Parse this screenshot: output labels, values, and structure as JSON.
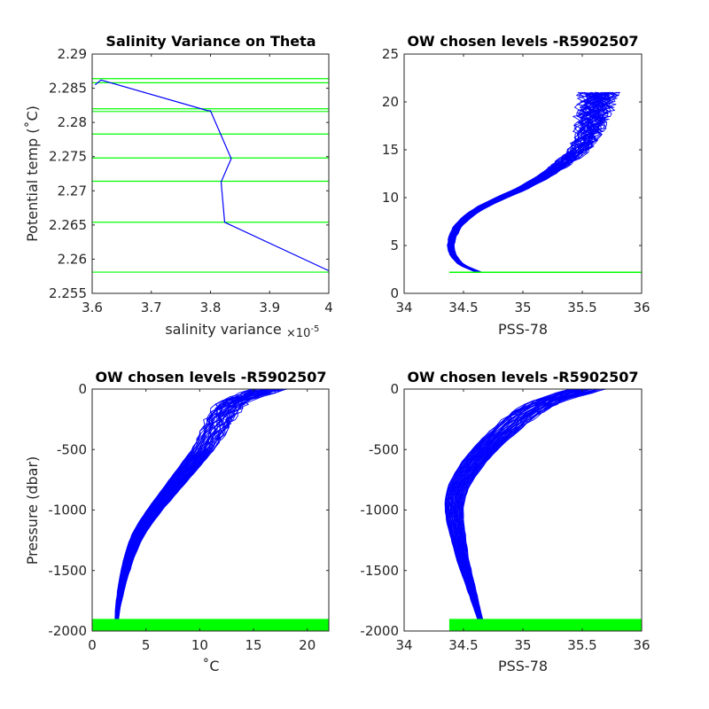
{
  "chart_data": [
    {
      "type": "line",
      "title": "Salinity Variance on Theta",
      "xlabel": "salinity variance",
      "x_multiplier": "×10",
      "x_multiplier_exp": "-5",
      "ylabel": "Potential temp (˚C)",
      "xlim": [
        3.6,
        4.0
      ],
      "ylim": [
        2.255,
        2.29
      ],
      "xticks": [
        "3.6",
        "3.7",
        "3.8",
        "3.9",
        "4"
      ],
      "yticks": [
        "2.255",
        "2.26",
        "2.265",
        "2.27",
        "2.275",
        "2.28",
        "2.285",
        "2.29"
      ],
      "series": [
        {
          "color": "#0000ff",
          "x": [
            4.0,
            3.824,
            3.818,
            3.835,
            3.8,
            3.796,
            3.615,
            3.605
          ],
          "y": [
            2.2583,
            2.2654,
            2.2713,
            2.2747,
            2.2817,
            2.2817,
            2.2862,
            2.2855
          ]
        }
      ],
      "hlines": {
        "color": "#00ff00",
        "y": [
          2.2581,
          2.2654,
          2.2714,
          2.2748,
          2.2783,
          2.2816,
          2.282,
          2.2858,
          2.2864
        ]
      }
    },
    {
      "type": "line",
      "title": "OW chosen levels -R5902507",
      "xlabel": "PSS-78",
      "ylabel": "",
      "xlim": [
        34,
        36
      ],
      "ylim": [
        0,
        25
      ],
      "xticks": [
        "34",
        "34.5",
        "35",
        "35.5",
        "36"
      ],
      "yticks": [
        "0",
        "5",
        "10",
        "15",
        "20",
        "25"
      ],
      "series": [
        {
          "name": "",
          "color": "#0000ff",
          "profile_count": 40,
          "envelope_center": {
            "y": [
              2.2,
              3.0,
              4.0,
              5.0,
              6.0,
              7.0,
              8.0,
              9.0,
              10.0,
              11.0,
              12.0,
              13.0,
              14.0,
              15.0,
              16.0,
              17.0,
              18.0,
              19.0,
              20.0,
              21.0
            ],
            "x": [
              34.63,
              34.48,
              34.41,
              34.39,
              34.41,
              34.45,
              34.53,
              34.65,
              34.82,
              35.0,
              35.15,
              35.27,
              35.38,
              35.47,
              35.53,
              35.56,
              35.58,
              35.6,
              35.62,
              35.65
            ]
          }
        }
      ],
      "hlines": {
        "color": "#00ff00",
        "y": [
          2.2
        ],
        "x_range": [
          34.38,
          36.0
        ]
      }
    },
    {
      "type": "line",
      "title": "OW chosen levels -R5902507",
      "xlabel": "˚C",
      "ylabel": "Pressure (dbar)",
      "xlim": [
        0,
        22
      ],
      "ylim": [
        -2000,
        0
      ],
      "xticks": [
        "0",
        "5",
        "10",
        "15",
        "20"
      ],
      "yticks": [
        "-2000",
        "-1500",
        "-1000",
        "-500",
        "0"
      ],
      "series": [
        {
          "color": "#0000ff",
          "profile_count": 40,
          "envelope_center": {
            "y": [
              -1900,
              -1800,
              -1700,
              -1600,
              -1500,
              -1400,
              -1300,
              -1200,
              -1100,
              -1000,
              -900,
              -800,
              -700,
              -600,
              -500,
              -400,
              -300,
              -200,
              -100,
              0
            ],
            "x": [
              2.3,
              2.4,
              2.6,
              2.8,
              3.1,
              3.4,
              3.8,
              4.3,
              5.0,
              5.8,
              6.7,
              7.6,
              8.5,
              9.4,
              10.3,
              11.0,
              11.6,
              12.2,
              13.2,
              16.5
            ]
          }
        }
      ],
      "hband": {
        "color": "#00ff00",
        "y": [
          -2000,
          -1900
        ]
      }
    },
    {
      "type": "line",
      "title": "OW chosen levels -R5902507",
      "xlabel": "PSS-78",
      "ylabel": "",
      "xlim": [
        34,
        36
      ],
      "ylim": [
        -2000,
        0
      ],
      "xticks": [
        "34",
        "34.5",
        "35",
        "35.5",
        "36"
      ],
      "yticks": [
        "-2000",
        "-1500",
        "-1000",
        "-500",
        "0"
      ],
      "series": [
        {
          "color": "#0000ff",
          "profile_count": 40,
          "envelope_center": {
            "y": [
              -1900,
              -1800,
              -1700,
              -1600,
              -1500,
              -1400,
              -1300,
              -1200,
              -1100,
              -1000,
              -900,
              -800,
              -700,
              -600,
              -500,
              -400,
              -300,
              -200,
              -100,
              0
            ],
            "x": [
              34.64,
              34.61,
              34.58,
              34.55,
              34.52,
              34.49,
              34.47,
              34.45,
              34.43,
              34.42,
              34.43,
              34.46,
              34.52,
              34.59,
              34.68,
              34.78,
              34.9,
              35.02,
              35.2,
              35.55
            ]
          }
        }
      ],
      "hband": {
        "color": "#00ff00",
        "y": [
          -2000,
          -1900
        ],
        "x_range": [
          34.38,
          36.0
        ]
      }
    }
  ]
}
